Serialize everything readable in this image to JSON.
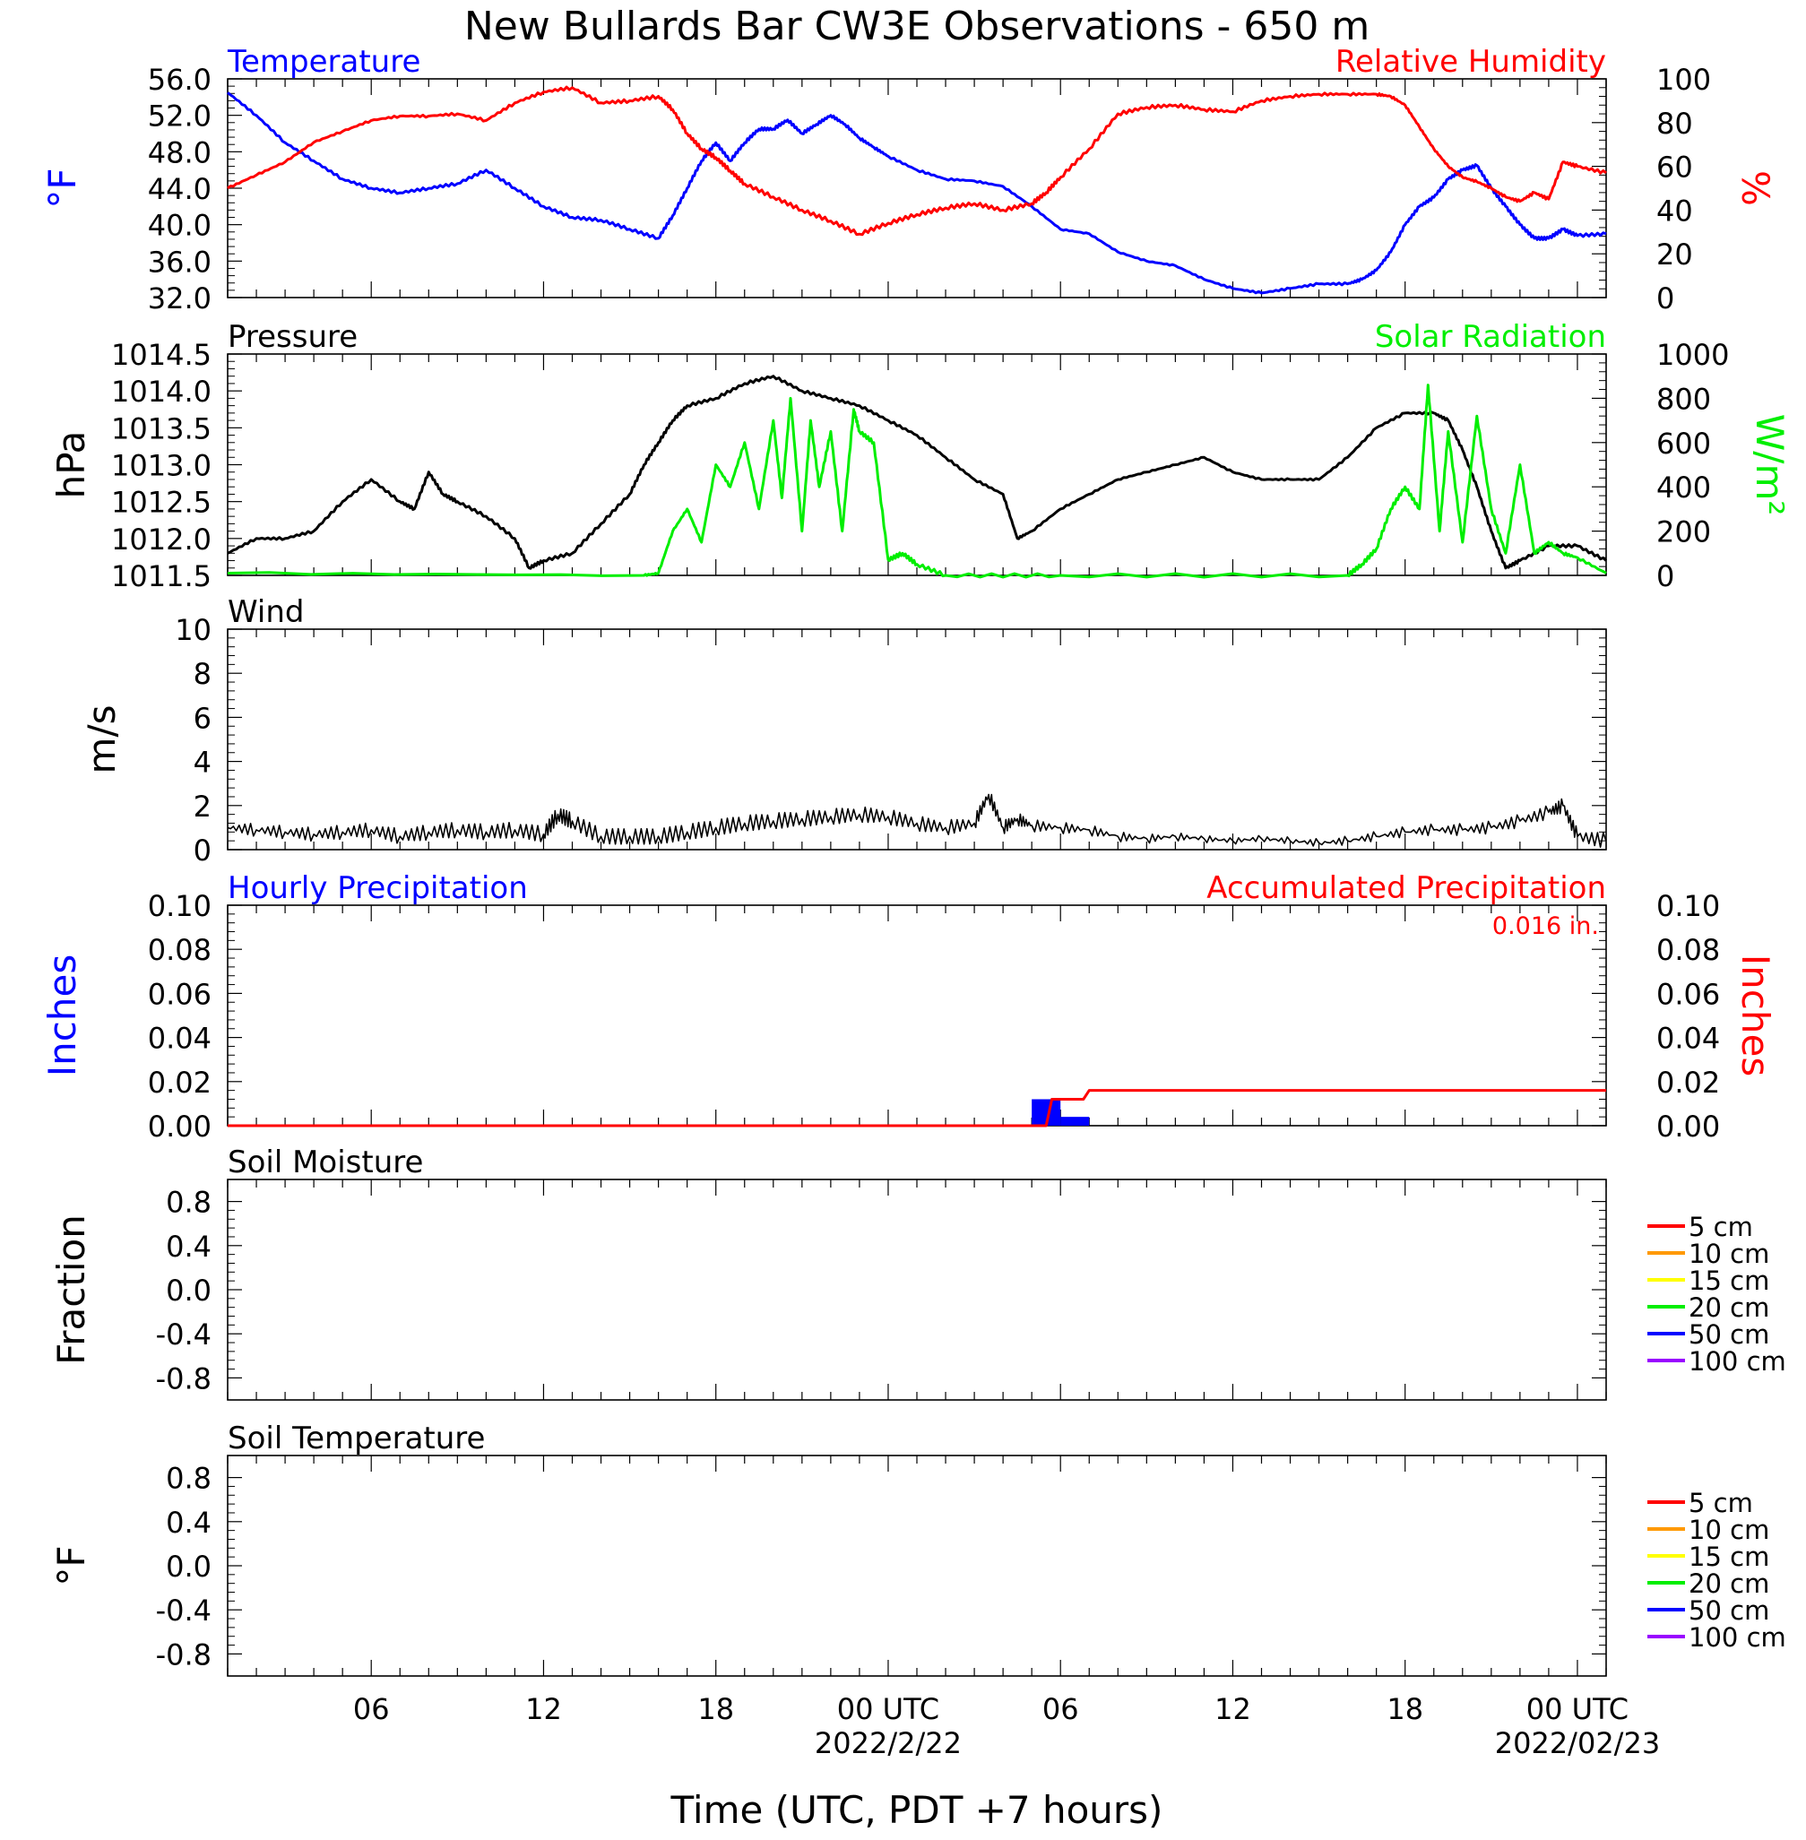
{
  "chart_data": {
    "type": "line",
    "title": "New Bullards Bar CW3E Observations - 650 m",
    "xlabel": "Time (UTC, PDT +7 hours)",
    "x_ticks": [
      {
        "hour": 6,
        "label": "06",
        "sub": ""
      },
      {
        "hour": 12,
        "label": "12",
        "sub": ""
      },
      {
        "hour": 18,
        "label": "18",
        "sub": ""
      },
      {
        "hour": 24,
        "label": "00 UTC",
        "sub": "2022/2/22"
      },
      {
        "hour": 30,
        "label": "06",
        "sub": ""
      },
      {
        "hour": 36,
        "label": "12",
        "sub": ""
      },
      {
        "hour": 42,
        "label": "18",
        "sub": ""
      },
      {
        "hour": 48,
        "label": "00 UTC",
        "sub": "2022/02/23"
      }
    ],
    "xlim": [
      1,
      49
    ],
    "panels": [
      {
        "id": "temp_rh",
        "left_title": "Temperature",
        "left_title_color": "#0000ff",
        "right_title": "Relative Humidity",
        "right_title_color": "#ff0000",
        "ylabel_left": "°F",
        "ylabel_right": "%",
        "ylim_left": [
          32,
          56
        ],
        "ylim_right": [
          0,
          100
        ],
        "yticks_left": [
          "56.0",
          "52.0",
          "48.0",
          "44.0",
          "40.0",
          "36.0",
          "32.0"
        ],
        "yticks_right": [
          "100",
          "80",
          "60",
          "40",
          "20",
          "0"
        ],
        "series": [
          {
            "name": "Temperature",
            "axis": "left",
            "color": "#0000ff",
            "x": [
              1,
              2,
              3,
              4,
              5,
              6,
              7,
              8,
              9,
              10,
              11,
              12,
              13,
              14,
              15,
              16,
              16.5,
              17,
              17.5,
              18,
              18.5,
              19,
              19.5,
              20,
              20.5,
              21,
              21.5,
              22,
              22.5,
              23,
              23.5,
              24,
              25,
              26,
              27,
              28,
              29,
              30,
              31,
              32,
              33,
              34,
              35,
              36,
              37,
              38,
              39,
              40,
              40.5,
              41,
              41.5,
              42,
              42.5,
              43,
              43.5,
              44,
              44.5,
              45,
              45.5,
              46,
              46.5,
              47,
              47.5,
              48,
              49
            ],
            "y": [
              54.5,
              52,
              49,
              47,
              45,
              44,
              43.5,
              44,
              44.5,
              46,
              44,
              42,
              40.8,
              40.5,
              39.5,
              38.5,
              41,
              44,
              47,
              49,
              47,
              49,
              50.5,
              50.5,
              51.5,
              50,
              51,
              52,
              51,
              49.5,
              48.5,
              47.5,
              46,
              45,
              44.8,
              44.2,
              42,
              39.5,
              39,
              37,
              36,
              35.5,
              34,
              33,
              32.5,
              33,
              33.5,
              33.5,
              34,
              35,
              37,
              40,
              42,
              43,
              45,
              46,
              46.5,
              44,
              42,
              40,
              38.5,
              38.5,
              39.5,
              38.8,
              39
            ]
          },
          {
            "name": "Relative Humidity",
            "axis": "right",
            "color": "#ff0000",
            "x": [
              1,
              2,
              3,
              4,
              5,
              6,
              7,
              8,
              9,
              10,
              11,
              12,
              13,
              14,
              15,
              16,
              16.5,
              17,
              17.5,
              18,
              18.5,
              19,
              20,
              21,
              22,
              23,
              24,
              25,
              26,
              27,
              28,
              29,
              29.5,
              30,
              31,
              32,
              33,
              34,
              35,
              36,
              37,
              38,
              39,
              40,
              41,
              41.5,
              42,
              42.5,
              43,
              43.5,
              44,
              44.5,
              45,
              45.5,
              46,
              46.5,
              47,
              47.5,
              48,
              49
            ],
            "y": [
              50,
              56,
              62,
              71,
              76,
              81,
              83,
              83,
              84,
              81,
              89,
              94,
              96,
              89,
              90,
              92,
              86,
              75,
              68,
              64,
              58,
              52,
              46,
              40,
              35,
              29,
              34,
              38,
              41,
              43,
              40,
              43,
              48,
              55,
              68,
              84,
              87,
              88,
              86,
              85,
              90,
              92,
              93,
              93,
              93,
              92,
              88,
              78,
              68,
              60,
              55,
              53,
              50,
              46,
              44,
              48,
              45,
              62,
              60,
              57
            ]
          }
        ]
      },
      {
        "id": "pressure_solar",
        "left_title": "Pressure",
        "left_title_color": "#000000",
        "right_title": "Solar Radiation",
        "right_title_color": "#00ee00",
        "ylabel_left": "hPa",
        "ylabel_right": "W/m²",
        "ylim_left": [
          1011.5,
          1014.5
        ],
        "ylim_right": [
          0,
          1000
        ],
        "yticks_left": [
          "1014.5",
          "1014.0",
          "1013.5",
          "1013.0",
          "1012.5",
          "1012.0",
          "1011.5"
        ],
        "yticks_right": [
          "1000",
          "800",
          "600",
          "400",
          "200",
          "0"
        ],
        "series": [
          {
            "name": "Pressure",
            "axis": "left",
            "color": "#000000",
            "x": [
              1,
              2,
              3,
              4,
              5,
              6,
              7,
              7.5,
              8,
              8.5,
              9,
              10,
              11,
              11.5,
              12,
              13,
              14,
              15,
              15.5,
              16,
              16.5,
              17,
              18,
              19,
              20,
              21,
              22,
              23,
              24,
              25,
              26,
              27,
              28,
              28.5,
              29,
              30,
              31,
              32,
              33,
              34,
              35,
              36,
              37,
              38,
              39,
              40,
              41,
              42,
              43,
              43.5,
              44,
              44.5,
              45,
              45.5,
              46,
              47,
              48,
              49
            ],
            "y": [
              1011.8,
              1012.0,
              1012.0,
              1012.1,
              1012.5,
              1012.8,
              1012.5,
              1012.4,
              1012.9,
              1012.6,
              1012.5,
              1012.3,
              1012.0,
              1011.6,
              1011.7,
              1011.8,
              1012.2,
              1012.6,
              1013.0,
              1013.3,
              1013.6,
              1013.8,
              1013.9,
              1014.1,
              1014.2,
              1014.0,
              1013.9,
              1013.8,
              1013.6,
              1013.4,
              1013.1,
              1012.8,
              1012.6,
              1012.0,
              1012.1,
              1012.4,
              1012.6,
              1012.8,
              1012.9,
              1013.0,
              1013.1,
              1012.9,
              1012.8,
              1012.8,
              1012.8,
              1013.1,
              1013.5,
              1013.7,
              1013.7,
              1013.6,
              1013.2,
              1012.7,
              1012.1,
              1011.6,
              1011.7,
              1011.9,
              1011.9,
              1011.7
            ]
          },
          {
            "name": "Solar Radiation",
            "axis": "right",
            "color": "#00ee00",
            "x": [
              1,
              15.5,
              16,
              16.5,
              17,
              17.5,
              18,
              18.5,
              19,
              19.5,
              20,
              20.3,
              20.6,
              21,
              21.3,
              21.6,
              22,
              22.4,
              22.8,
              23,
              23.5,
              24,
              24.5,
              25,
              26,
              30,
              40,
              40.5,
              41,
              41.5,
              42,
              42.5,
              42.8,
              43.2,
              43.5,
              44,
              44.5,
              45,
              45.5,
              46,
              46.5,
              47,
              47.5,
              48,
              49
            ],
            "y": [
              10,
              0,
              10,
              200,
              300,
              150,
              500,
              400,
              600,
              300,
              700,
              350,
              800,
              200,
              700,
              400,
              650,
              200,
              750,
              650,
              600,
              70,
              100,
              50,
              0,
              0,
              0,
              50,
              120,
              300,
              400,
              300,
              860,
              200,
              650,
              150,
              720,
              300,
              100,
              500,
              100,
              150,
              100,
              80,
              10
            ]
          }
        ]
      },
      {
        "id": "wind",
        "left_title": "Wind",
        "left_title_color": "#000000",
        "ylabel_left": "m/s",
        "ylim_left": [
          0,
          10
        ],
        "yticks_left": [
          "10",
          "8",
          "6",
          "4",
          "2",
          "0"
        ],
        "series": [
          {
            "name": "Wind",
            "axis": "left",
            "color": "#000000",
            "x": [
              1,
              2,
              3,
              4,
              5,
              6,
              7,
              8,
              9,
              10,
              11,
              12,
              12.5,
              13,
              14,
              15,
              16,
              17,
              18,
              19,
              20,
              21,
              22,
              23,
              24,
              25,
              26,
              27,
              27.5,
              28,
              28.5,
              29,
              30,
              31,
              32,
              33,
              34,
              35,
              36,
              37,
              38,
              39,
              40,
              41,
              42,
              43,
              44,
              45,
              46,
              47,
              47.5,
              48,
              49
            ],
            "y": [
              1.0,
              0.9,
              0.8,
              0.7,
              0.8,
              0.9,
              0.6,
              0.8,
              0.9,
              0.8,
              0.9,
              0.7,
              1.6,
              1.3,
              0.6,
              0.6,
              0.6,
              0.8,
              1.0,
              1.2,
              1.3,
              1.4,
              1.5,
              1.6,
              1.5,
              1.2,
              1.0,
              1.2,
              2.5,
              1.0,
              1.4,
              1.1,
              1.0,
              0.9,
              0.6,
              0.5,
              0.6,
              0.5,
              0.4,
              0.5,
              0.4,
              0.3,
              0.4,
              0.6,
              0.8,
              0.9,
              0.9,
              1.0,
              1.3,
              1.7,
              2.0,
              0.6,
              0.4
            ]
          }
        ]
      },
      {
        "id": "precip",
        "left_title": "Hourly Precipitation",
        "left_title_color": "#0000ff",
        "right_title": "Accumulated Precipitation",
        "right_title_color": "#ff0000",
        "annotation": "0.016 in.",
        "ylabel_left": "Inches",
        "ylabel_right": "Inches",
        "ylim_left": [
          0,
          0.1
        ],
        "ylim_right": [
          0,
          0.1
        ],
        "yticks_left": [
          "0.10",
          "0.08",
          "0.06",
          "0.04",
          "0.02",
          "0.00"
        ],
        "yticks_right": [
          "0.10",
          "0.08",
          "0.06",
          "0.04",
          "0.02",
          "0.00"
        ],
        "bars": [
          {
            "name": "Hourly Precipitation",
            "color": "#0000ff",
            "x_start": [
              29,
              30
            ],
            "x_end": [
              30,
              31
            ],
            "values": [
              0.012,
              0.004
            ]
          }
        ],
        "series": [
          {
            "name": "Accumulated Precipitation",
            "axis": "right",
            "color": "#ff0000",
            "x": [
              1,
              29.5,
              29.7,
              30.8,
              31.0,
              49
            ],
            "y": [
              0,
              0,
              0.012,
              0.012,
              0.016,
              0.016
            ]
          }
        ]
      },
      {
        "id": "soil_moisture",
        "left_title": "Soil Moisture",
        "left_title_color": "#000000",
        "ylabel_left": "Fraction",
        "ylim_left": [
          -1,
          1
        ],
        "yticks_left": [
          "0.8",
          "0.4",
          "0.0",
          "-0.4",
          "-0.8"
        ],
        "legend": [
          {
            "label": "5 cm",
            "color": "#ff0000"
          },
          {
            "label": "10 cm",
            "color": "#ff9900"
          },
          {
            "label": "15 cm",
            "color": "#ffff00"
          },
          {
            "label": "20 cm",
            "color": "#00ee00"
          },
          {
            "label": "50 cm",
            "color": "#0000ff"
          },
          {
            "label": "100 cm",
            "color": "#9900ff"
          }
        ],
        "series": []
      },
      {
        "id": "soil_temp",
        "left_title": "Soil Temperature",
        "left_title_color": "#000000",
        "ylabel_left": "°F",
        "ylim_left": [
          -1,
          1
        ],
        "yticks_left": [
          "0.8",
          "0.4",
          "0.0",
          "-0.4",
          "-0.8"
        ],
        "legend": [
          {
            "label": "5 cm",
            "color": "#ff0000"
          },
          {
            "label": "10 cm",
            "color": "#ff9900"
          },
          {
            "label": "15 cm",
            "color": "#ffff00"
          },
          {
            "label": "20 cm",
            "color": "#00ee00"
          },
          {
            "label": "50 cm",
            "color": "#0000ff"
          },
          {
            "label": "100 cm",
            "color": "#9900ff"
          }
        ],
        "series": []
      }
    ]
  }
}
